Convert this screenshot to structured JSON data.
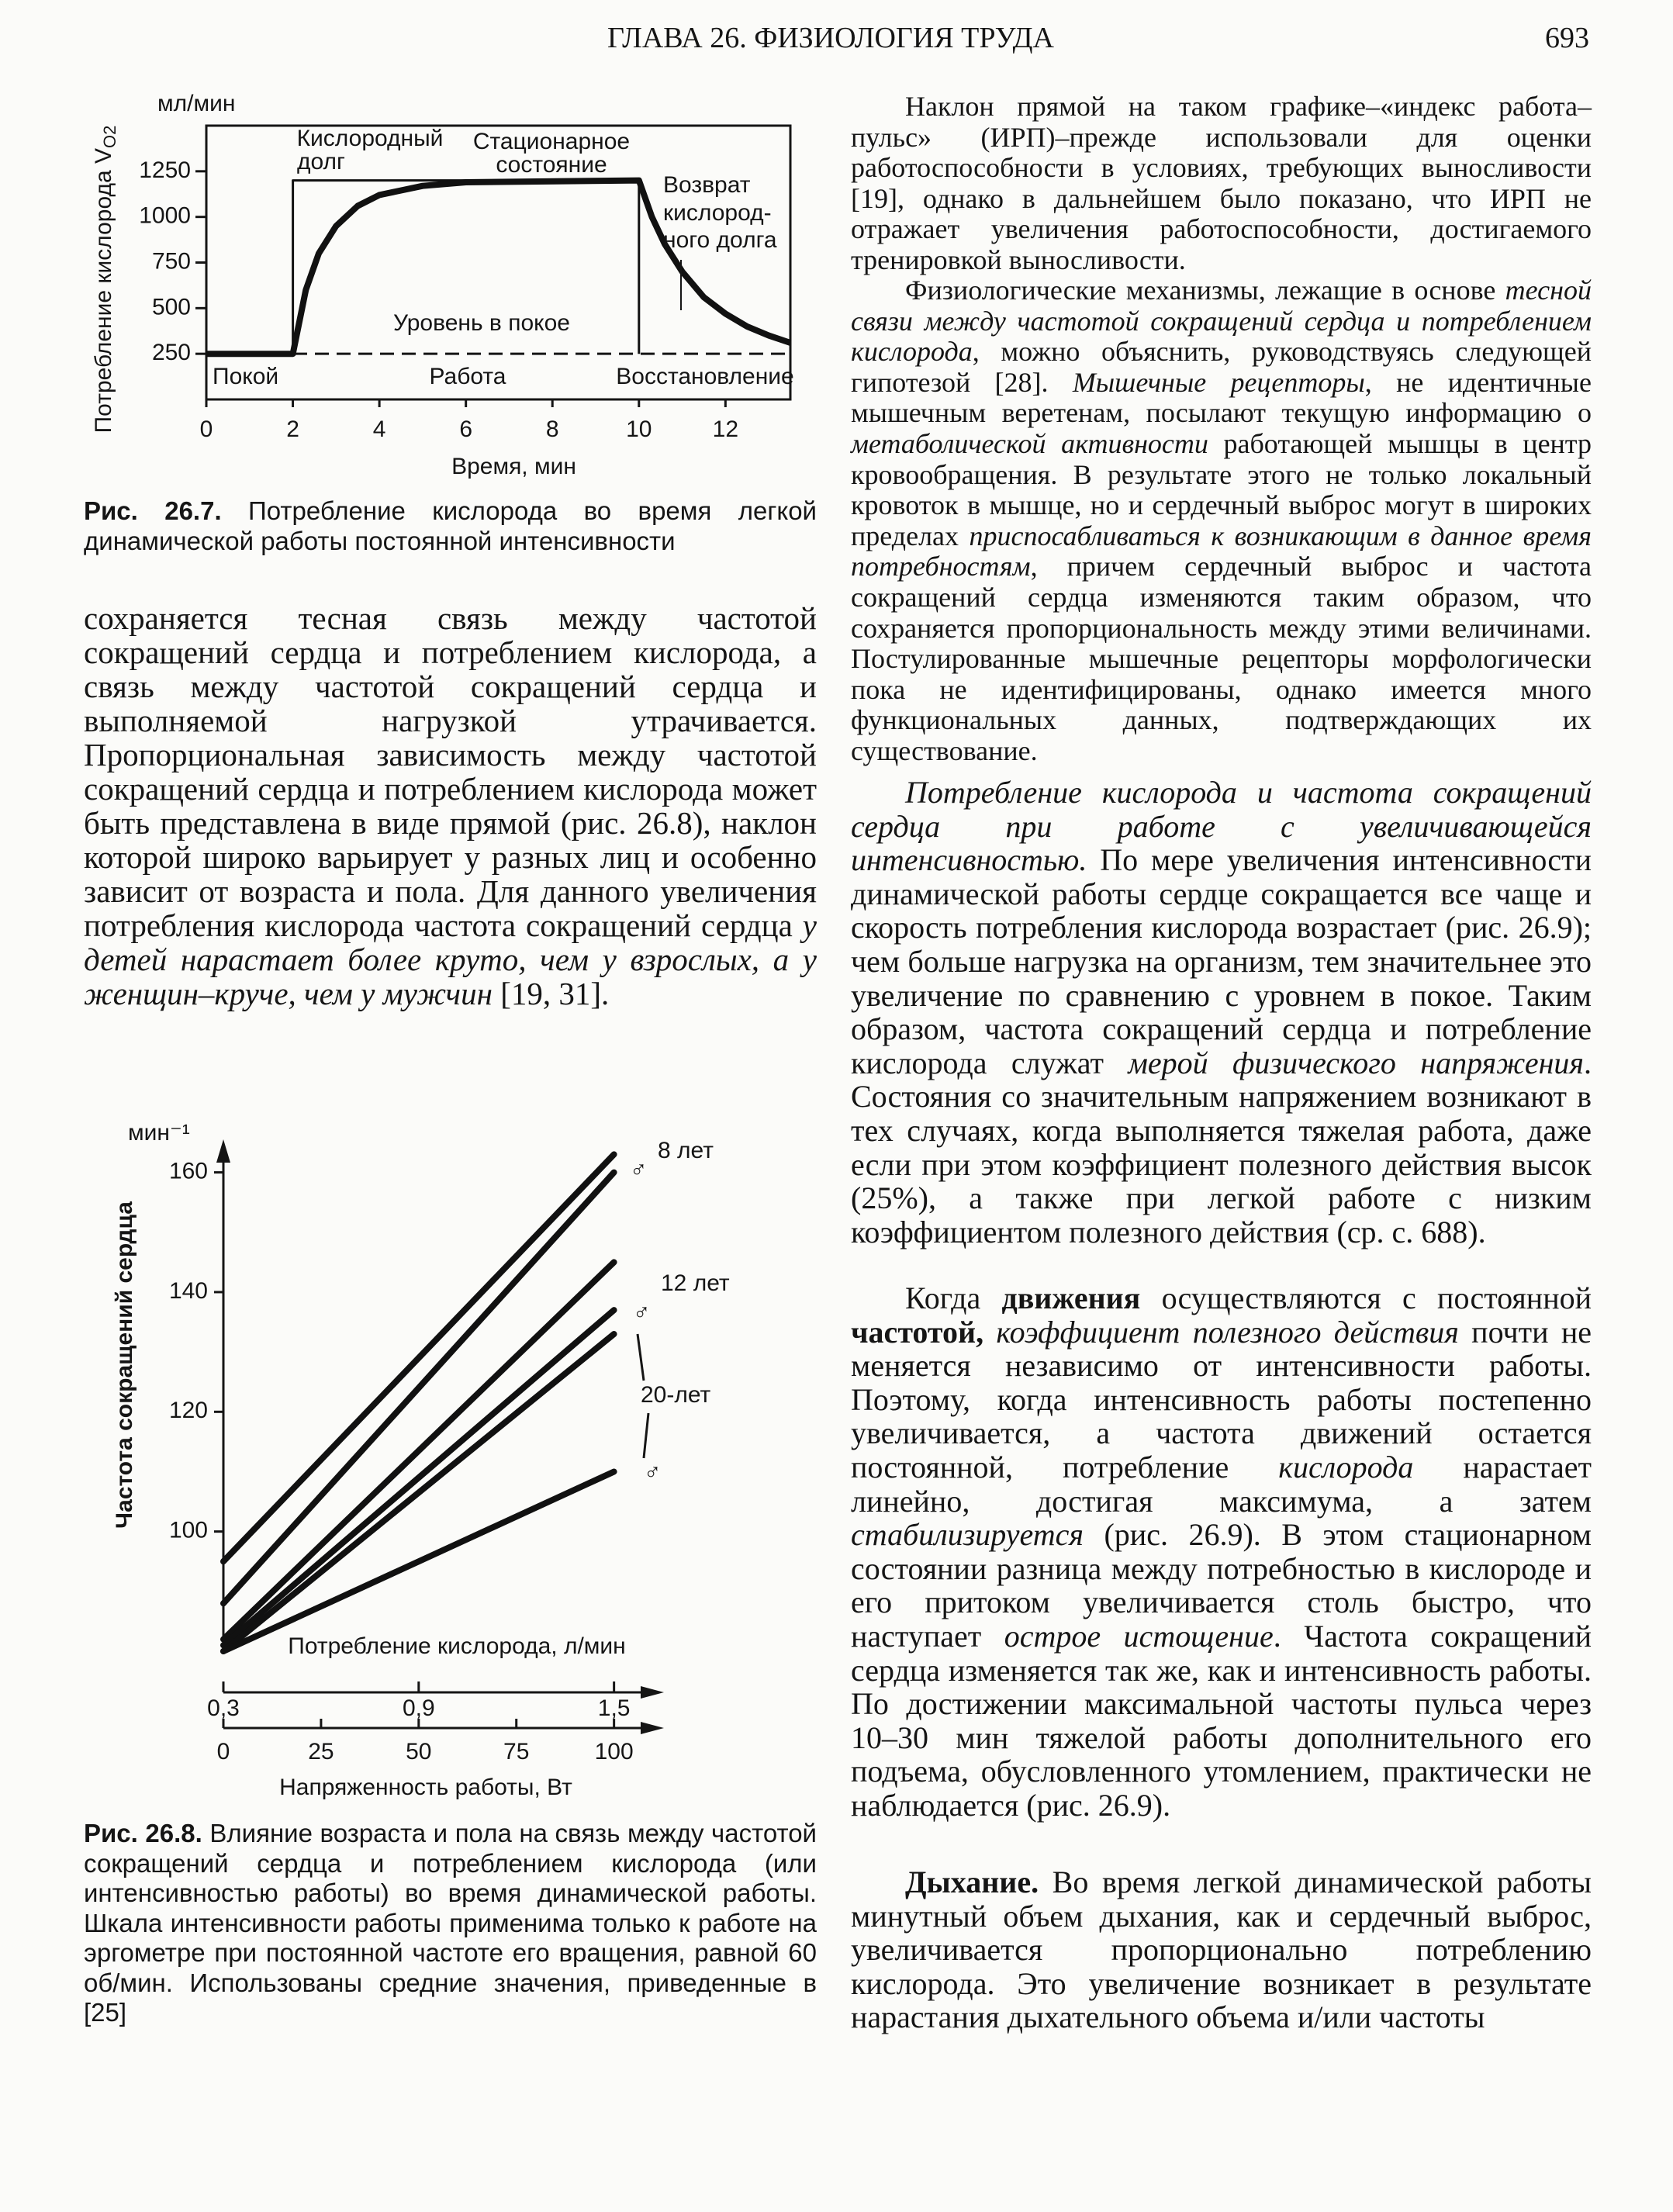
{
  "header": {
    "title": "ГЛАВА 26. ФИЗИОЛОГИЯ ТРУДА",
    "page": "693"
  },
  "chart_data": [
    {
      "type": "line",
      "figure_label": "Рис. 26.7.",
      "caption": " Потребление кислорода во время легкой динамической работы постоянной интенсивности",
      "y_label": "Потребление кислорода V",
      "y_label_sub": "O2",
      "y_unit": "мл/мин",
      "x_label": "Время, мин",
      "xlim": [
        0,
        13.5
      ],
      "xticks": [
        0,
        2,
        4,
        6,
        8,
        10,
        12
      ],
      "ylim": [
        0,
        1500
      ],
      "yticks": [
        250,
        500,
        750,
        1000,
        1250
      ],
      "rest_level": 250,
      "series": [
        {
          "color": "#111111",
          "x": [
            0,
            2,
            2,
            10,
            10
          ],
          "values": [
            250,
            250,
            1200,
            1200,
            250
          ]
        },
        {
          "color": "#111111",
          "x": [
            0,
            2,
            2.3,
            2.6,
            3,
            3.5,
            4,
            5,
            6,
            10,
            10.3,
            10.6,
            11,
            11.5,
            12,
            12.5,
            13,
            13.5
          ],
          "values": [
            250,
            250,
            600,
            800,
            950,
            1060,
            1120,
            1170,
            1190,
            1200,
            1000,
            850,
            700,
            560,
            470,
            400,
            350,
            310
          ]
        }
      ],
      "annotations": [
        [
          "Кислородный",
          "долг"
        ],
        [
          "Стационарное",
          "состояние"
        ],
        [
          "Возврат",
          "кислород-",
          "ного долга"
        ],
        [
          "Уровень в покое"
        ],
        [
          "Покой"
        ],
        [
          "Работа"
        ],
        [
          "Восстановление"
        ]
      ]
    },
    {
      "type": "line",
      "figure_label": "Рис. 26.8.",
      "caption": " Влияние возраста и пола на связь между частотой сокращений сердца и потреблением кислорода (или интенсивностью работы) во время динамической работы. Шкала интенсивности работы применима только к работе на эргометре при постоянной частоте его вращения, равной 60 об/мин. Использованы средние значения, приведенные в [25]",
      "y_label": "Частота сокращений сердца",
      "y_unit": "мин⁻¹",
      "x_label": "Напряженность работы, Вт",
      "x2_label": "Потребление кислорода, л/мин",
      "xlim": [
        0,
        110
      ],
      "xticks": [
        0,
        25,
        50,
        75,
        100
      ],
      "x2lim": [
        0.3,
        1.62
      ],
      "x2ticks": [
        {
          "value": 0.3,
          "label": "0,3"
        },
        {
          "value": 0.9,
          "label": "0,9"
        },
        {
          "value": 1.5,
          "label": "1,5"
        }
      ],
      "ylim": [
        80,
        165
      ],
      "yticks": [
        100,
        120,
        140,
        160
      ],
      "series": [
        {
          "color": "#111111",
          "x": [
            0,
            100
          ],
          "values": [
            95,
            163
          ]
        },
        {
          "color": "#111111",
          "x": [
            0,
            100
          ],
          "values": [
            88,
            160
          ]
        },
        {
          "color": "#111111",
          "x": [
            0,
            100
          ],
          "values": [
            82,
            145
          ]
        },
        {
          "color": "#111111",
          "x": [
            0,
            100
          ],
          "values": [
            81,
            137
          ]
        },
        {
          "color": "#111111",
          "x": [
            0,
            100
          ],
          "values": [
            80,
            133
          ]
        },
        {
          "color": "#111111",
          "x": [
            0,
            100
          ],
          "values": [
            80,
            110
          ]
        }
      ],
      "annotations": [
        "8 лет",
        "12 лет",
        "20-лет",
        "♂",
        "♂",
        "♂"
      ]
    }
  ],
  "left_column": [
    [
      {
        "text": "сохраняется тесная связь между частотой сокращений сердца и потреблением кислорода, а связь между частотой сокращений сердца и выполняемой нагрузкой утрачивается. Пропорциональная зависимость между частотой сокращений сердца и потреблением кислорода может быть представлена в виде прямой (рис. 26.8), наклон которой широко варьирует у разных лиц и особенно зависит от возраста и пола. Для данного увеличения потребления кислорода частота сокращений сердца "
      },
      {
        "text": "у детей нарастает более круто, чем у взрослых, а у женщин–круче, чем у мужчин",
        "italic": true
      },
      {
        "text": " [19, 31]."
      }
    ]
  ],
  "right_column": [
    [
      {
        "text": "Наклон прямой на таком графике–«индекс работа–пульс» (ИРП)–прежде использовали для оценки работоспособности в условиях, требующих выносливости [19], однако в дальнейшем было показано, что ИРП не отражает увеличения работоспособности, достигаемого тренировкой выносливости."
      }
    ],
    [
      {
        "text": "Физиологические механизмы, лежащие в основе "
      },
      {
        "text": "тесной связи между частотой сокращений сердца и потреблением кислорода",
        "italic": true
      },
      {
        "text": ", можно объяснить, руководствуясь следующей гипотезой [28]. "
      },
      {
        "text": "Мышечные рецепторы",
        "italic": true
      },
      {
        "text": ", не идентичные мышечным веретенам, посылают текущую информацию о "
      },
      {
        "text": "метаболической активности",
        "italic": true
      },
      {
        "text": " работающей мышцы в центр кровообращения. В результате этого не только локальный кровоток в мышце, но и сердечный выброс могут в широких пределах "
      },
      {
        "text": "приспосабливаться к возникающим в данное время потребностям",
        "italic": true
      },
      {
        "text": ", причем сердечный выброс и частота сокращений сердца изменяются таким образом, что сохраняется пропорциональность между этими величинами. Постулированные мышечные рецепторы морфологически пока не идентифицированы, однако имеется много функциональных данных, подтверждающих их существование."
      }
    ],
    [
      {
        "text": "Потребление кислорода и частота сокращений сердца при работе с увеличивающейся интенсивностью.",
        "italic": true
      },
      {
        "text": " По мере увеличения интенсивности динамической работы сердце сокращается все чаще и скорость потребления кислорода возрастает (рис. 26.9); чем больше нагрузка на организм, тем значительнее это увеличение по сравнению с уровнем в покое. Таким образом, частота сокращений сердца и потребление кислорода служат "
      },
      {
        "text": "мерой физического напряжения",
        "italic": true
      },
      {
        "text": ". Состояния со значительным напряжением возникают в тех случаях, когда выполняется тяжелая работа, даже если при этом коэффициент полезного действия высок (25%), а также при легкой работе с низким коэффициентом полезного действия (ср. с. 688)."
      }
    ],
    [
      {
        "text": "Когда "
      },
      {
        "text": "движения",
        "bold": true
      },
      {
        "text": " осуществляются с постоянной "
      },
      {
        "text": "частотой,",
        "bold": true
      },
      {
        "text": " "
      },
      {
        "text": "коэффициент полезного действия",
        "italic": true
      },
      {
        "text": " почти не меняется независимо от интенсивности работы. Поэтому, когда интенсивность работы постепенно увеличивается, а частота движений остается постоянной, потребление "
      },
      {
        "text": "кислорода",
        "italic": true
      },
      {
        "text": " нарастает линейно, достигая максимума, а затем "
      },
      {
        "text": "стабилизируется",
        "italic": true
      },
      {
        "text": " (рис. 26.9). В этом стационарном состоянии разница между потребностью в кислороде и его притоком увеличивается столь быстро, что наступает "
      },
      {
        "text": "острое истощение",
        "italic": true
      },
      {
        "text": ". Частота сокращений сердца изменяется так же, как и интенсивность работы. По достижении максимальной частоты пульса через 10–30 мин тяжелой работы дополнительного его подъема, обусловленного утомлением, практически не наблюдается (рис. 26.9)."
      }
    ],
    [
      {
        "text": "Дыхание.",
        "bold": true
      },
      {
        "text": " Во время легкой динамической работы минутный объем дыхания, как и сердечный выброс, увеличивается пропорционально потреблению кислорода. Это увеличение возникает в результате нарастания дыхательного объема и/или частоты"
      }
    ]
  ]
}
